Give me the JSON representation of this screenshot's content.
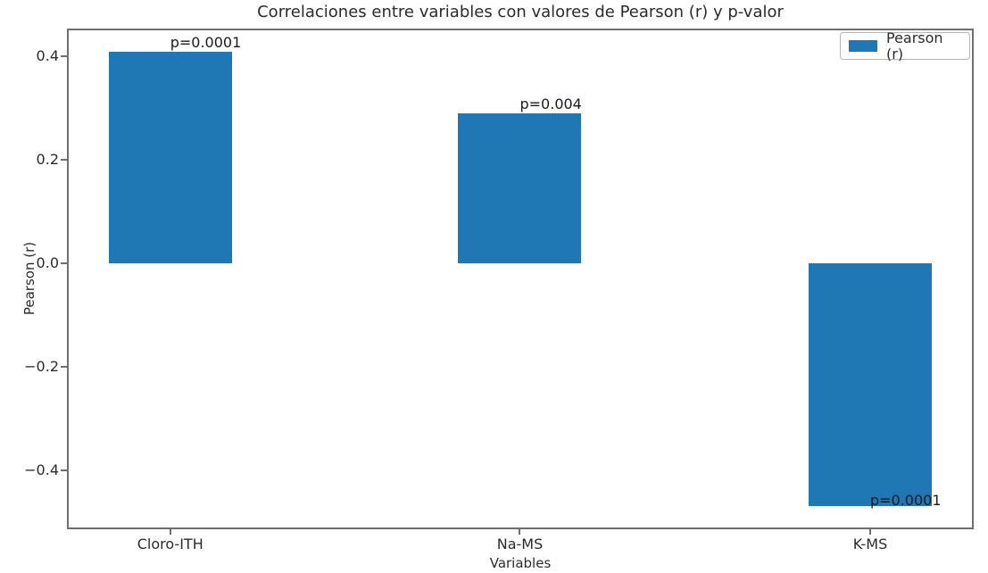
{
  "chart_data": {
    "type": "bar",
    "title": "Correlaciones entre variables con valores de Pearson (r) y p-valor",
    "xlabel": "Variables",
    "ylabel": "Pearson (r)",
    "categories": [
      "Cloro-ITH",
      "Na-MS",
      "K-MS"
    ],
    "series": [
      {
        "name": "Pearson (r)",
        "values": [
          0.41,
          0.29,
          -0.47
        ],
        "color": "#1f77b4"
      }
    ],
    "bar_annotations": [
      "p=0.0001",
      "p=0.004",
      "p=0.0001"
    ],
    "yticks": [
      0.4,
      0.2,
      0.0,
      -0.2,
      -0.4
    ],
    "ytick_labels": [
      "0.4",
      "0.2",
      "0.0",
      "−0.2",
      "−0.4"
    ],
    "ylim": [
      -0.514,
      0.454
    ],
    "grid": false,
    "legend": {
      "position": "upper right",
      "entries": [
        {
          "label": "Pearson (r)",
          "color": "#1f77b4"
        }
      ]
    }
  }
}
